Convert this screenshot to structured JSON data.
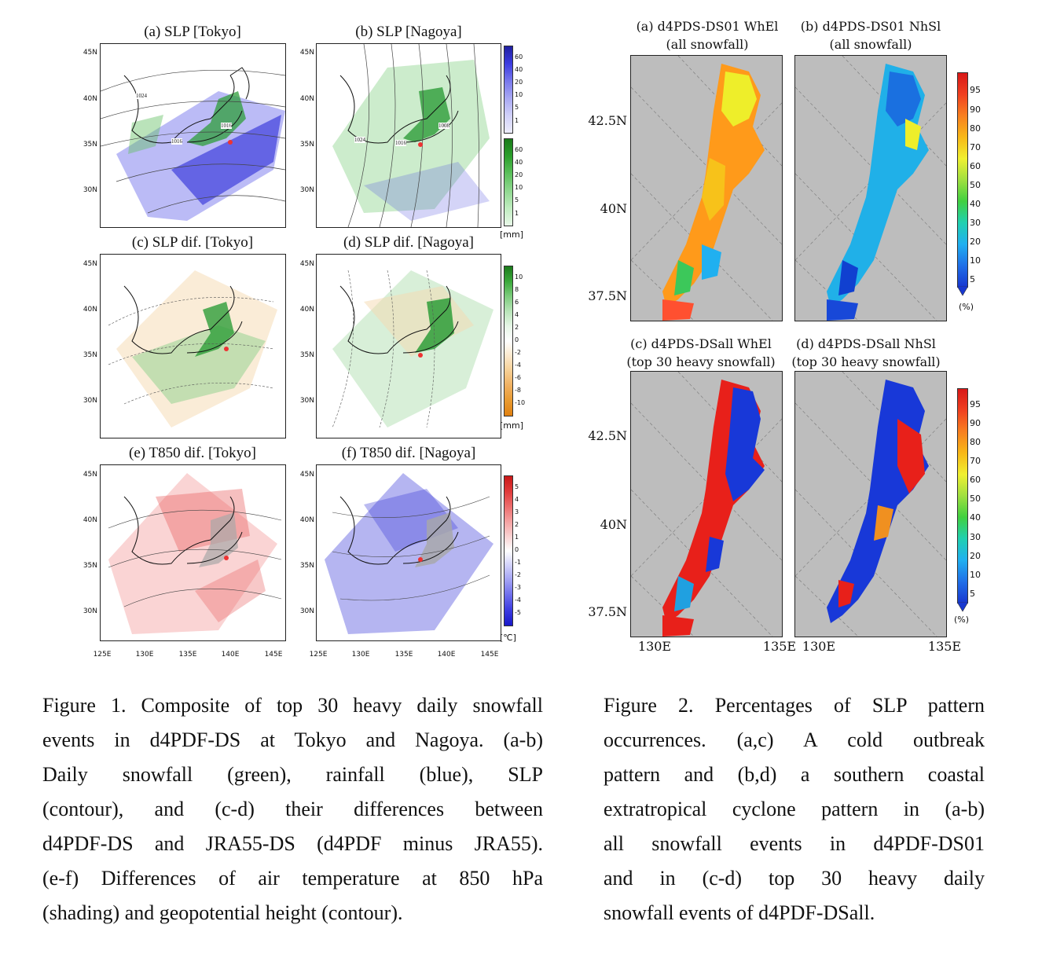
{
  "figure1": {
    "panels": [
      {
        "title": "(a) SLP [Tokyo]"
      },
      {
        "title": "(b) SLP [Nagoya]"
      },
      {
        "title": "(c) SLP dif. [Tokyo]"
      },
      {
        "title": "(d) SLP dif. [Nagoya]"
      },
      {
        "title": "(e) T850 dif. [Tokyo]"
      },
      {
        "title": "(f) T850 dif. [Nagoya]"
      }
    ],
    "lat_labels": [
      "45N",
      "40N",
      "35N",
      "30N"
    ],
    "lon_labels": [
      "125E",
      "130E",
      "135E",
      "140E",
      "145E"
    ],
    "snow_rain_ticks": [
      "60",
      "40",
      "20",
      "10",
      "5",
      "1"
    ],
    "diff_ticks": [
      "10",
      "8",
      "6",
      "4",
      "2",
      "0",
      "-2",
      "-4",
      "-6",
      "-8",
      "-10"
    ],
    "temp_ticks": [
      "5",
      "4",
      "3",
      "2",
      "1",
      "0",
      "-1",
      "-2",
      "-3",
      "-4",
      "-5"
    ],
    "unit_mm": "[mm]",
    "unit_degc": "[℃]",
    "contour_labels_a": [
      "1024",
      "1016",
      "1016"
    ],
    "contour_labels_b": [
      "1024",
      "1016",
      "1008"
    ],
    "caption_lines": [
      "Figure 1. Composite of top 30 heavy daily snowfall",
      "events in d4PDF-DS at Tokyo and Nagoya. (a-b)",
      "Daily snowfall (green), rainfall (blue), SLP",
      "(contour), and (c-d) their differences between",
      "d4PDF-DS and JRA55-DS (d4PDF minus JRA55).",
      "(e-f) Differences of air temperature at 850 hPa",
      "(shading) and geopotential height (contour)."
    ]
  },
  "figure2": {
    "panels": [
      {
        "title_line1": "(a) d4PDS-DS01 WhEl",
        "title_line2": "(all snowfall)"
      },
      {
        "title_line1": "(b) d4PDS-DS01 NhSl",
        "title_line2": "(all snowfall)"
      },
      {
        "title_line1": "(c) d4PDS-DSall WhEl",
        "title_line2": "(top 30 heavy snowfall)"
      },
      {
        "title_line1": "(d) d4PDS-DSall NhSl",
        "title_line2": "(top 30 heavy snowfall)"
      }
    ],
    "lat_labels": [
      "42.5N",
      "40N",
      "37.5N"
    ],
    "lon_labels": [
      "130E",
      "135E",
      "130E",
      "135E"
    ],
    "pct_ticks": [
      "95",
      "90",
      "80",
      "70",
      "60",
      "50",
      "40",
      "30",
      "20",
      "10",
      "5"
    ],
    "unit_pct": "(%)",
    "caption_lines": [
      "Figure 2. Percentages of SLP pattern",
      "occurrences. (a,c) A cold outbreak",
      "pattern and (b,d) a southern coastal",
      "extratropical cyclone pattern in (a-b)",
      "all snowfall events in d4PDF-DS01",
      "and in (c-d) top 30 heavy daily",
      "snowfall events of d4PDF-DSall."
    ]
  },
  "colors": {
    "snow_green": "#2ca02c",
    "rain_blue": "#3b3be0",
    "diff_orange": "#f0b060",
    "warm_red": "#e04848",
    "land_grey": "#bdbdbd"
  }
}
